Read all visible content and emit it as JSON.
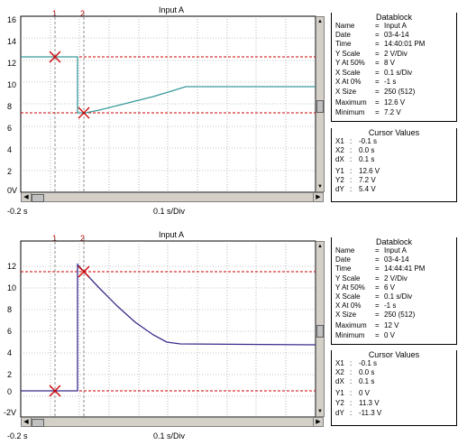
{
  "panels": [
    {
      "title": "Input A",
      "y_ticks": [
        "16",
        "14",
        "12",
        "10",
        "8",
        "6",
        "4",
        "2",
        "0V"
      ],
      "x_left": "-0.2 s",
      "x_scale": "0.1 s/Div",
      "cursors": [
        "1",
        "2"
      ],
      "datablock": {
        "header": "Datablock",
        "rows": [
          {
            "k": "Name",
            "v": "Input A"
          },
          {
            "k": "Date",
            "v": "03-4-14"
          },
          {
            "k": "Time",
            "v": "14:40:01 PM"
          },
          {
            "k": "Y Scale",
            "v": "2   V/Div"
          },
          {
            "k": "Y At 50%",
            "v": "8   V"
          },
          {
            "k": "X Scale",
            "v": "0.1  s/Div"
          },
          {
            "k": "X At 0%",
            "v": "-1   s"
          },
          {
            "k": "X Size",
            "v": "250 (512)"
          },
          {
            "k": "Maximum",
            "v": "12.6  V"
          },
          {
            "k": "Minimum",
            "v": "7.2  V"
          }
        ]
      },
      "cursor_values": {
        "header": "Cursor Values",
        "rows": [
          {
            "k": "X1",
            "v": "-0.1  s"
          },
          {
            "k": "X2",
            "v": "0.0  s"
          },
          {
            "k": "dX",
            "v": "0.1  s"
          },
          {
            "k": "Y1",
            "v": "12.6  V"
          },
          {
            "k": "Y2",
            "v": "7.2  V"
          },
          {
            "k": "dY",
            "v": "5.4  V"
          }
        ]
      },
      "trace_color": "#3a9a9a"
    },
    {
      "title": "Input A",
      "y_ticks": [
        "12",
        "10",
        "8",
        "6",
        "4",
        "2",
        "0",
        "-2V"
      ],
      "x_left": "-0.2 s",
      "x_scale": "0.1 s/Div",
      "cursors": [
        "1",
        "2"
      ],
      "datablock": {
        "header": "Datablock",
        "rows": [
          {
            "k": "Name",
            "v": "Input A"
          },
          {
            "k": "Date",
            "v": "03-4-14"
          },
          {
            "k": "Time",
            "v": "14:44:41 PM"
          },
          {
            "k": "Y Scale",
            "v": "2   V/Div"
          },
          {
            "k": "Y At 50%",
            "v": "6   V"
          },
          {
            "k": "X Scale",
            "v": "0.1  s/Div"
          },
          {
            "k": "X At 0%",
            "v": "-1   s"
          },
          {
            "k": "X Size",
            "v": "250 (512)"
          },
          {
            "k": "Maximum",
            "v": "12   V"
          },
          {
            "k": "Minimum",
            "v": "0   V"
          }
        ]
      },
      "cursor_values": {
        "header": "Cursor Values",
        "rows": [
          {
            "k": "X1",
            "v": "-0.1  s"
          },
          {
            "k": "X2",
            "v": "0.0  s"
          },
          {
            "k": "dX",
            "v": "0.1  s"
          },
          {
            "k": "Y1",
            "v": "0   V"
          },
          {
            "k": "Y2",
            "v": "11.3  V"
          },
          {
            "k": "dY",
            "v": "-11.3  V"
          }
        ]
      },
      "trace_color": "#3a2a8a"
    }
  ],
  "colors": {
    "grid": "#888888",
    "cursor": "#cc0000",
    "cursor_v": "#707070"
  }
}
